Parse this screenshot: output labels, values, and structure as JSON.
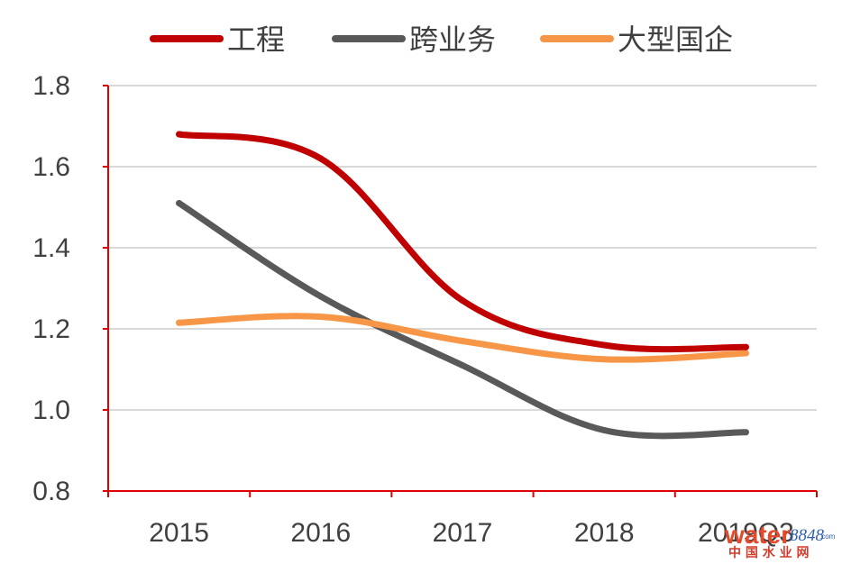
{
  "chart_data": {
    "type": "line",
    "categories": [
      "2015",
      "2016",
      "2017",
      "2018",
      "2019Q3"
    ],
    "series": [
      {
        "name": "工程",
        "color": "#c00000",
        "values": [
          1.68,
          1.62,
          1.27,
          1.16,
          1.155
        ]
      },
      {
        "name": "跨业务",
        "color": "#595959",
        "values": [
          1.51,
          1.28,
          1.11,
          0.95,
          0.945
        ]
      },
      {
        "name": "大型国企",
        "color": "#f79646",
        "values": [
          1.215,
          1.23,
          1.17,
          1.125,
          1.14
        ]
      }
    ],
    "ylim": [
      0.8,
      1.8
    ],
    "yticks": [
      "0.8",
      "1.0",
      "1.2",
      "1.4",
      "1.6",
      "1.8"
    ],
    "grid": true,
    "legend_position": "top",
    "smooth": true,
    "axis_color": "#e00000",
    "grid_color": "#d9d9d9"
  },
  "watermark": {
    "main": "water",
    "number": "8848",
    "suffix": ".com",
    "subtitle": "中 国 水 业 网"
  }
}
